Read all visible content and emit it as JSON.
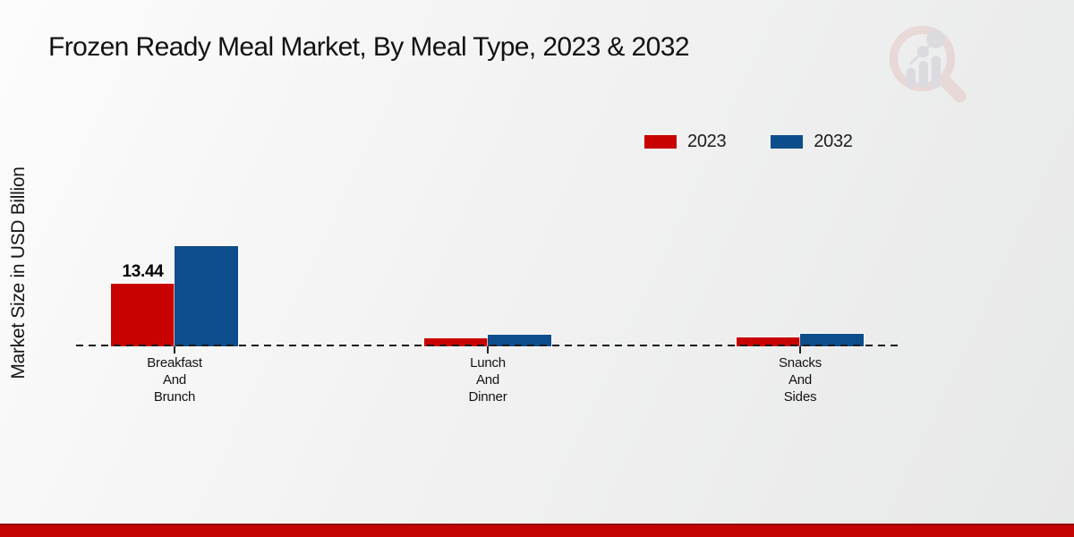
{
  "title": "Frozen Ready Meal Market, By Meal Type, 2023 & 2032",
  "y_axis_label": "Market Size in USD Billion",
  "legend": [
    {
      "label": "2023",
      "color": "#c80201"
    },
    {
      "label": "2032",
      "color": "#0d4d8b"
    }
  ],
  "chart_data": {
    "type": "bar",
    "title": "Frozen Ready Meal Market, By Meal Type, 2023 & 2032",
    "ylabel": "Market Size in USD Billion",
    "categories": [
      "Breakfast And Brunch",
      "Lunch And Dinner",
      "Snacks And Sides"
    ],
    "series": [
      {
        "name": "2023",
        "color": "#c80201",
        "values": [
          13.44,
          1.7,
          1.9
        ],
        "labels": [
          "13.44",
          "",
          ""
        ]
      },
      {
        "name": "2032",
        "color": "#0d4d8b",
        "values": [
          21.5,
          2.5,
          2.7
        ],
        "labels": [
          "",
          "",
          ""
        ]
      }
    ],
    "baseline": {
      "value": 0,
      "style": "dashed",
      "color": "#1a1a1a"
    },
    "grid": false,
    "legend_position": "top-right"
  },
  "watermark_icon": "market-research-future-logo",
  "footer": {
    "color": "#c50303",
    "edge_color": "#920202"
  }
}
